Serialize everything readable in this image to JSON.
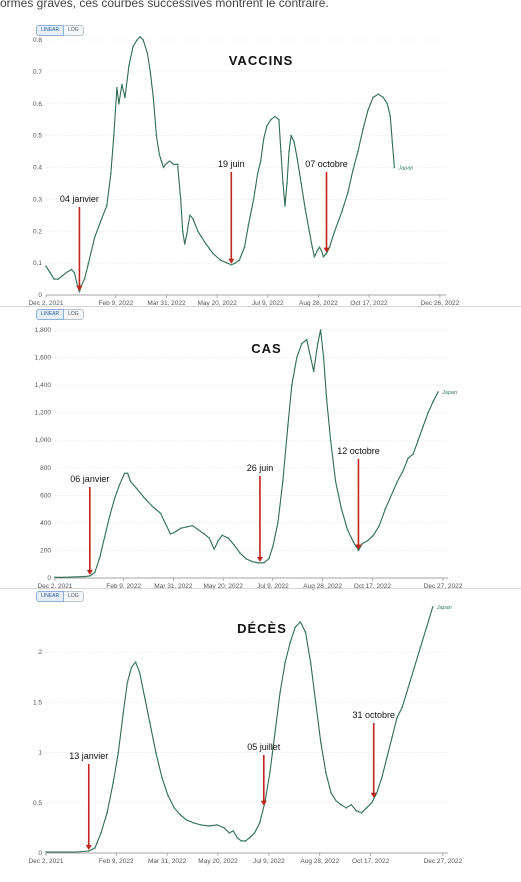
{
  "caption": "ormes graves, ces courbes successives montrent le contraire.",
  "colors": {
    "line": "#2f6b4f",
    "marker": "#4d8a72",
    "arrow": "#c0241b",
    "grid": "#e4e4e4"
  },
  "chart_data": [
    {
      "type": "line",
      "title": "VACCINS",
      "toggle": [
        "LINEAR",
        "LOG"
      ],
      "active_scale": "LINEAR",
      "series_name": "Japan",
      "x_labels": [
        "Dec 2, 2021",
        "Feb 9, 2022",
        "Mar 31, 2022",
        "May 20, 2022",
        "Jul 9, 2022",
        "Aug 28, 2022",
        "Oct 17, 2022",
        "Dec 26, 2022"
      ],
      "y_ticks": [
        "0",
        "0.1",
        "0.2",
        "0.3",
        "0.4",
        "0.5",
        "0.6",
        "0.7",
        "0.8"
      ],
      "ylim": [
        0,
        0.8
      ],
      "xlim": [
        0,
        395
      ],
      "x_tick_days": [
        0,
        69,
        119,
        169,
        219,
        269,
        319,
        389
      ],
      "points": [
        [
          0,
          0.09
        ],
        [
          4,
          0.07
        ],
        [
          8,
          0.05
        ],
        [
          12,
          0.05
        ],
        [
          16,
          0.06
        ],
        [
          20,
          0.07
        ],
        [
          25,
          0.08
        ],
        [
          28,
          0.07
        ],
        [
          31,
          0.03
        ],
        [
          33,
          0.01
        ],
        [
          35,
          0.03
        ],
        [
          38,
          0.05
        ],
        [
          42,
          0.1
        ],
        [
          48,
          0.18
        ],
        [
          55,
          0.24
        ],
        [
          60,
          0.28
        ],
        [
          64,
          0.38
        ],
        [
          67,
          0.5
        ],
        [
          70,
          0.65
        ],
        [
          72,
          0.6
        ],
        [
          75,
          0.66
        ],
        [
          78,
          0.62
        ],
        [
          82,
          0.72
        ],
        [
          86,
          0.78
        ],
        [
          90,
          0.8
        ],
        [
          93,
          0.81
        ],
        [
          96,
          0.8
        ],
        [
          100,
          0.76
        ],
        [
          103,
          0.7
        ],
        [
          106,
          0.62
        ],
        [
          109,
          0.5
        ],
        [
          112,
          0.44
        ],
        [
          114,
          0.42
        ],
        [
          116,
          0.4
        ],
        [
          118,
          0.41
        ],
        [
          122,
          0.42
        ],
        [
          126,
          0.41
        ],
        [
          130,
          0.41
        ],
        [
          133,
          0.3
        ],
        [
          135,
          0.2
        ],
        [
          137,
          0.16
        ],
        [
          139,
          0.19
        ],
        [
          142,
          0.25
        ],
        [
          145,
          0.24
        ],
        [
          150,
          0.2
        ],
        [
          158,
          0.16
        ],
        [
          165,
          0.13
        ],
        [
          172,
          0.11
        ],
        [
          179,
          0.1
        ],
        [
          183,
          0.095
        ],
        [
          187,
          0.1
        ],
        [
          191,
          0.11
        ],
        [
          196,
          0.15
        ],
        [
          200,
          0.22
        ],
        [
          205,
          0.3
        ],
        [
          209,
          0.38
        ],
        [
          212,
          0.42
        ],
        [
          215,
          0.49
        ],
        [
          218,
          0.53
        ],
        [
          222,
          0.55
        ],
        [
          226,
          0.56
        ],
        [
          230,
          0.55
        ],
        [
          232,
          0.45
        ],
        [
          234,
          0.35
        ],
        [
          236,
          0.28
        ],
        [
          238,
          0.35
        ],
        [
          240,
          0.45
        ],
        [
          242,
          0.5
        ],
        [
          245,
          0.48
        ],
        [
          248,
          0.43
        ],
        [
          252,
          0.35
        ],
        [
          256,
          0.27
        ],
        [
          260,
          0.2
        ],
        [
          263,
          0.15
        ],
        [
          265,
          0.12
        ],
        [
          268,
          0.14
        ],
        [
          270,
          0.15
        ],
        [
          272,
          0.14
        ],
        [
          274,
          0.12
        ],
        [
          277,
          0.13
        ],
        [
          280,
          0.15
        ],
        [
          285,
          0.2
        ],
        [
          292,
          0.26
        ],
        [
          298,
          0.32
        ],
        [
          303,
          0.39
        ],
        [
          308,
          0.45
        ],
        [
          313,
          0.52
        ],
        [
          318,
          0.58
        ],
        [
          323,
          0.62
        ],
        [
          328,
          0.63
        ],
        [
          333,
          0.62
        ],
        [
          337,
          0.6
        ],
        [
          340,
          0.56
        ],
        [
          342,
          0.48
        ],
        [
          344,
          0.4
        ]
      ],
      "annotations": [
        {
          "label": "04 janvier",
          "day": 33
        },
        {
          "label": "19  juin",
          "day": 183
        },
        {
          "label": "07 octobre",
          "day": 277
        }
      ]
    },
    {
      "type": "line",
      "title": "CAS",
      "toggle": [
        "LINEAR",
        "LOG"
      ],
      "active_scale": "LINEAR",
      "series_name": "Japan",
      "x_labels": [
        "Dec 2, 2021",
        "Feb 9, 2022",
        "Mar 31, 2022",
        "May 20, 2022",
        "Jul 9, 2022",
        "Aug 28, 2022",
        "Oct 17, 2022",
        "Dec 27, 2022"
      ],
      "y_ticks": [
        "0",
        "200",
        "400",
        "600",
        "800",
        "1,000",
        "1,200",
        "1,400",
        "1,600",
        "1,800"
      ],
      "ylim": [
        0,
        1800
      ],
      "xlim": [
        0,
        395
      ],
      "x_tick_days": [
        0,
        69,
        119,
        169,
        219,
        269,
        319,
        390
      ],
      "points": [
        [
          0,
          5
        ],
        [
          10,
          5
        ],
        [
          20,
          8
        ],
        [
          30,
          10
        ],
        [
          35,
          15
        ],
        [
          40,
          40
        ],
        [
          45,
          150
        ],
        [
          50,
          300
        ],
        [
          55,
          450
        ],
        [
          60,
          580
        ],
        [
          65,
          680
        ],
        [
          70,
          760
        ],
        [
          73,
          760
        ],
        [
          76,
          700
        ],
        [
          82,
          650
        ],
        [
          90,
          580
        ],
        [
          98,
          520
        ],
        [
          106,
          470
        ],
        [
          112,
          380
        ],
        [
          116,
          320
        ],
        [
          120,
          330
        ],
        [
          126,
          360
        ],
        [
          132,
          370
        ],
        [
          138,
          380
        ],
        [
          144,
          350
        ],
        [
          150,
          320
        ],
        [
          155,
          290
        ],
        [
          160,
          210
        ],
        [
          164,
          270
        ],
        [
          168,
          310
        ],
        [
          174,
          290
        ],
        [
          180,
          240
        ],
        [
          186,
          180
        ],
        [
          192,
          140
        ],
        [
          198,
          120
        ],
        [
          204,
          110
        ],
        [
          210,
          110
        ],
        [
          215,
          140
        ],
        [
          219,
          230
        ],
        [
          224,
          400
        ],
        [
          229,
          700
        ],
        [
          234,
          1100
        ],
        [
          238,
          1400
        ],
        [
          243,
          1600
        ],
        [
          248,
          1700
        ],
        [
          253,
          1730
        ],
        [
          257,
          1600
        ],
        [
          260,
          1500
        ],
        [
          264,
          1700
        ],
        [
          267,
          1800
        ],
        [
          270,
          1600
        ],
        [
          273,
          1300
        ],
        [
          277,
          1000
        ],
        [
          282,
          700
        ],
        [
          288,
          500
        ],
        [
          294,
          350
        ],
        [
          300,
          260
        ],
        [
          305,
          200
        ],
        [
          309,
          250
        ],
        [
          314,
          270
        ],
        [
          320,
          310
        ],
        [
          326,
          380
        ],
        [
          332,
          500
        ],
        [
          338,
          600
        ],
        [
          344,
          700
        ],
        [
          350,
          780
        ],
        [
          355,
          870
        ],
        [
          360,
          900
        ],
        [
          365,
          1000
        ],
        [
          370,
          1100
        ],
        [
          375,
          1200
        ],
        [
          380,
          1280
        ],
        [
          385,
          1350
        ]
      ],
      "annotations": [
        {
          "label": "06 janvier",
          "day": 35
        },
        {
          "label": "26 juin",
          "day": 206
        },
        {
          "label": "12 octobre",
          "day": 305
        }
      ]
    },
    {
      "type": "line",
      "title": "DÉCÈS",
      "toggle": [
        "LINEAR",
        "LOG"
      ],
      "active_scale": "LINEAR",
      "series_name": "Japan",
      "x_labels": [
        "Dec 2, 2021",
        "Feb 9, 2022",
        "Mar 31, 2022",
        "May 20, 2022",
        "Jul 9, 2022",
        "Aug 28, 2022",
        "Oct 17, 2022",
        "Dec 27, 2022"
      ],
      "y_ticks": [
        "0",
        "0.5",
        "1",
        "1.5",
        "2"
      ],
      "ylim": [
        0,
        2.4
      ],
      "xlim": [
        0,
        395
      ],
      "x_tick_days": [
        0,
        69,
        119,
        169,
        219,
        269,
        319,
        390
      ],
      "points": [
        [
          0,
          0.01
        ],
        [
          15,
          0.01
        ],
        [
          30,
          0.01
        ],
        [
          42,
          0.02
        ],
        [
          48,
          0.05
        ],
        [
          54,
          0.2
        ],
        [
          60,
          0.4
        ],
        [
          66,
          0.7
        ],
        [
          71,
          1.0
        ],
        [
          76,
          1.4
        ],
        [
          80,
          1.7
        ],
        [
          84,
          1.85
        ],
        [
          88,
          1.9
        ],
        [
          92,
          1.8
        ],
        [
          97,
          1.55
        ],
        [
          102,
          1.3
        ],
        [
          108,
          1.0
        ],
        [
          114,
          0.75
        ],
        [
          120,
          0.57
        ],
        [
          126,
          0.45
        ],
        [
          132,
          0.38
        ],
        [
          138,
          0.33
        ],
        [
          145,
          0.3
        ],
        [
          152,
          0.28
        ],
        [
          160,
          0.27
        ],
        [
          168,
          0.28
        ],
        [
          175,
          0.25
        ],
        [
          180,
          0.2
        ],
        [
          184,
          0.22
        ],
        [
          188,
          0.15
        ],
        [
          192,
          0.12
        ],
        [
          196,
          0.12
        ],
        [
          200,
          0.15
        ],
        [
          205,
          0.2
        ],
        [
          210,
          0.3
        ],
        [
          215,
          0.5
        ],
        [
          220,
          0.8
        ],
        [
          225,
          1.2
        ],
        [
          230,
          1.6
        ],
        [
          235,
          1.9
        ],
        [
          240,
          2.1
        ],
        [
          245,
          2.25
        ],
        [
          250,
          2.3
        ],
        [
          255,
          2.2
        ],
        [
          260,
          1.9
        ],
        [
          265,
          1.5
        ],
        [
          270,
          1.1
        ],
        [
          275,
          0.8
        ],
        [
          280,
          0.6
        ],
        [
          285,
          0.52
        ],
        [
          290,
          0.48
        ],
        [
          295,
          0.45
        ],
        [
          300,
          0.48
        ],
        [
          305,
          0.42
        ],
        [
          310,
          0.4
        ],
        [
          315,
          0.45
        ],
        [
          320,
          0.5
        ],
        [
          325,
          0.6
        ],
        [
          330,
          0.75
        ],
        [
          335,
          0.95
        ],
        [
          340,
          1.15
        ],
        [
          345,
          1.35
        ],
        [
          350,
          1.45
        ],
        [
          356,
          1.65
        ],
        [
          362,
          1.85
        ],
        [
          368,
          2.05
        ],
        [
          374,
          2.25
        ],
        [
          380,
          2.45
        ]
      ],
      "annotations": [
        {
          "label": "13 janvier",
          "day": 42
        },
        {
          "label": "05 juillet",
          "day": 214
        },
        {
          "label": "31 octobre",
          "day": 322
        }
      ]
    }
  ]
}
